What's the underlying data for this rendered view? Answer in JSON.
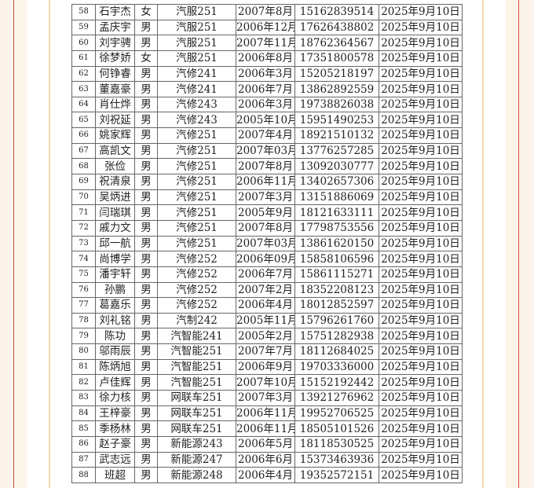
{
  "rows": [
    [
      "58",
      "石宇杰",
      "女",
      "汽服251",
      "2007年8月",
      "15162839514",
      "2025年9月10日"
    ],
    [
      "59",
      "孟庆宇",
      "男",
      "汽服251",
      "2006年12月",
      "17626438802",
      "2025年9月10日"
    ],
    [
      "60",
      "刘宇骋",
      "男",
      "汽服251",
      "2007年11月",
      "18762364567",
      "2025年9月10日"
    ],
    [
      "61",
      "徐梦娇",
      "女",
      "汽服251",
      "2006年8月",
      "17351800578",
      "2025年9月10日"
    ],
    [
      "62",
      "何铮睿",
      "男",
      "汽修241",
      "2006年3月",
      "15205218197",
      "2025年9月10日"
    ],
    [
      "63",
      "董嘉豪",
      "男",
      "汽修241",
      "2006年7月",
      "13862892559",
      "2025年9月10日"
    ],
    [
      "64",
      "肖仕烨",
      "男",
      "汽修243",
      "2006年3月",
      "19738826038",
      "2025年9月10日"
    ],
    [
      "65",
      "刘祝延",
      "男",
      "汽修243",
      "2005年10月",
      "15951490253",
      "2025年9月10日"
    ],
    [
      "66",
      "姚家辉",
      "男",
      "汽修251",
      "2007年4月",
      "18921510132",
      "2025年9月10日"
    ],
    [
      "67",
      "高凯文",
      "男",
      "汽修251",
      "2007年03月",
      "13776257285",
      "2025年9月10日"
    ],
    [
      "68",
      "张俭",
      "男",
      "汽修251",
      "2007年8月",
      "13092030777",
      "2025年9月10日"
    ],
    [
      "69",
      "祝清泉",
      "男",
      "汽修251",
      "2006年11月",
      "13402657306",
      "2025年9月10日"
    ],
    [
      "70",
      "吴炳进",
      "男",
      "汽修251",
      "2007年3月",
      "13151886069",
      "2025年9月10日"
    ],
    [
      "71",
      "闫瑞琪",
      "男",
      "汽修251",
      "2005年9月",
      "18121633111",
      "2025年9月10日"
    ],
    [
      "72",
      "戚力文",
      "男",
      "汽修251",
      "2007年8月",
      "17798753556",
      "2025年9月10日"
    ],
    [
      "73",
      "邱一航",
      "男",
      "汽修251",
      "2007年03月",
      "13861620150",
      "2025年9月10日"
    ],
    [
      "74",
      "尚博学",
      "男",
      "汽修252",
      "2006年09月",
      "15858106596",
      "2025年9月10日"
    ],
    [
      "75",
      "潘宇轩",
      "男",
      "汽修252",
      "2006年7月",
      "15861115271",
      "2025年9月10日"
    ],
    [
      "76",
      "孙鹏",
      "男",
      "汽修252",
      "2007年2月",
      "18352208123",
      "2025年9月10日"
    ],
    [
      "77",
      "葛嘉乐",
      "男",
      "汽修252",
      "2006年4月",
      "18012852597",
      "2025年9月10日"
    ],
    [
      "78",
      "刘礼铭",
      "男",
      "汽制242",
      "2005年11月",
      "15796261760",
      "2025年9月10日"
    ],
    [
      "79",
      "陈功",
      "男",
      "汽智能241",
      "2005年2月",
      "15751282938",
      "2025年9月10日"
    ],
    [
      "80",
      "邬雨辰",
      "男",
      "汽智能251",
      "2007年7月",
      "18112684025",
      "2025年9月10日"
    ],
    [
      "81",
      "陈炳旭",
      "男",
      "汽智能251",
      "2006年9月",
      "19703336000",
      "2025年9月10日"
    ],
    [
      "82",
      "卢佳辉",
      "男",
      "汽智能251",
      "2007年10月",
      "15152192442",
      "2025年9月10日"
    ],
    [
      "83",
      "徐力核",
      "男",
      "网联车251",
      "2007年3月",
      "13921276962",
      "2025年9月10日"
    ],
    [
      "84",
      "王梓豪",
      "男",
      "网联车251",
      "2006年11月",
      "19952706525",
      "2025年9月10日"
    ],
    [
      "85",
      "季杨林",
      "男",
      "网联车251",
      "2006年11月",
      "18505101526",
      "2025年9月10日"
    ],
    [
      "86",
      "赵子豪",
      "男",
      "新能源243",
      "2006年5月",
      "18118530525",
      "2025年9月10日"
    ],
    [
      "87",
      "武志远",
      "男",
      "新能源247",
      "2006年6月",
      "15373463936",
      "2025年9月10日"
    ],
    [
      "88",
      "班超",
      "男",
      "新能源248",
      "2006年4月",
      "19352572151",
      "2025年9月10日"
    ]
  ]
}
